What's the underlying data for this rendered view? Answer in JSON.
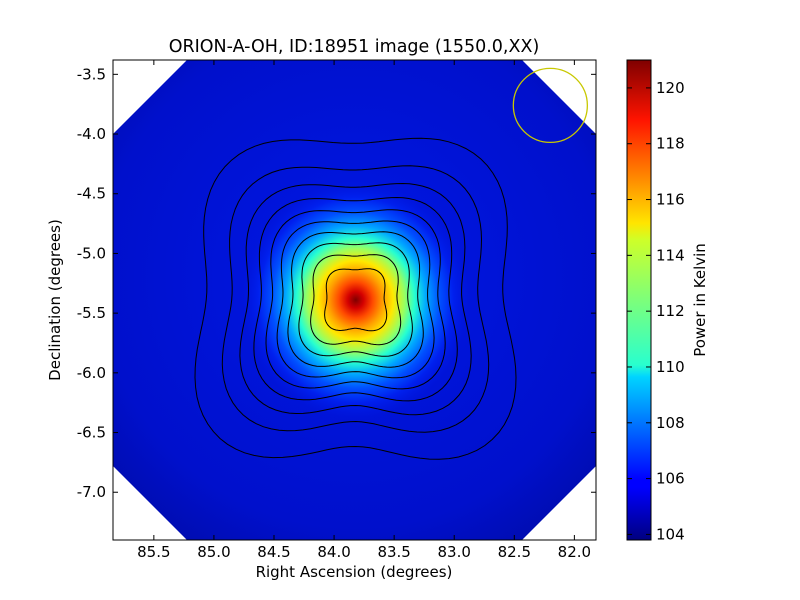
{
  "chart_data": {
    "type": "heatmap",
    "title": "ORION-A-OH, ID:18951 image (1550.0,XX)",
    "xlabel": "Right Ascension (degrees)",
    "ylabel": "Declination (degrees)",
    "colorbar_label": "Power in Kelvin",
    "xlim": [
      85.84,
      81.82
    ],
    "ylim": [
      -7.4,
      -3.38
    ],
    "x_ticks": [
      85.5,
      85.0,
      84.5,
      84.0,
      83.5,
      83.0,
      82.5,
      82.0
    ],
    "x_tick_labels": [
      "85.5",
      "85.0",
      "84.5",
      "84.0",
      "83.5",
      "83.0",
      "82.5",
      "82.0"
    ],
    "y_ticks": [
      -3.5,
      -4.0,
      -4.5,
      -5.0,
      -5.5,
      -6.0,
      -6.5,
      -7.0
    ],
    "y_tick_labels": [
      "-3.5",
      "-4.0",
      "-4.5",
      "-5.0",
      "-5.5",
      "-6.0",
      "-6.5",
      "-7.0"
    ],
    "colorbar_range": [
      103.8,
      121.0
    ],
    "colorbar_ticks": [
      104,
      106,
      108,
      110,
      112,
      114,
      116,
      118,
      120
    ],
    "colorbar_tick_labels": [
      "104",
      "106",
      "108",
      "110",
      "112",
      "114",
      "116",
      "118",
      "120"
    ],
    "colormap": "jet",
    "source": {
      "ra": 83.82,
      "dec": -5.39,
      "peak": 121.0,
      "background": 104.8
    },
    "contour_levels": [
      106,
      107.5,
      109,
      110.5,
      112,
      113.5,
      115,
      116.5,
      118,
      119.5
    ],
    "beam_circle": {
      "ra": 82.2,
      "dec": -3.76,
      "radius_deg": 0.31,
      "color": "#c8c800"
    },
    "masked_corners": "white"
  }
}
